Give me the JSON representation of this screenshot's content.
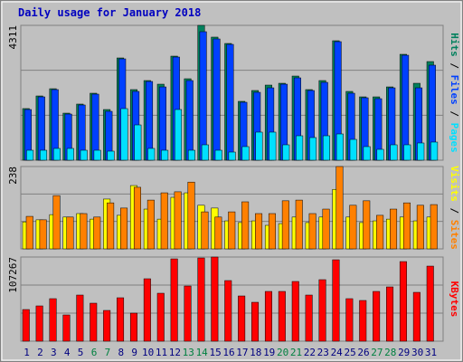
{
  "chart_data": [
    {
      "type": "bar",
      "title": "Daily usage for January 2018",
      "legend_separator": " / ",
      "ylim": [
        0,
        4311
      ],
      "yticks": [
        4311
      ],
      "series": [
        {
          "name": "Hits",
          "color": "#00805c",
          "values": [
            1650,
            2054,
            2285,
            1504,
            1794,
            2141,
            1620,
            3269,
            2257,
            2546,
            2430,
            3327,
            2604,
            4311,
            3935,
            3732,
            1881,
            2228,
            2401,
            2459,
            2690,
            2257,
            2546,
            3819,
            2199,
            2025,
            2025,
            2343,
            3385,
            2459,
            3153
          ]
        },
        {
          "name": "Files",
          "color": "#0040ff",
          "values": [
            1620,
            2025,
            2257,
            1475,
            1765,
            2112,
            1562,
            3240,
            2199,
            2517,
            2343,
            3298,
            2546,
            4108,
            3877,
            3703,
            1852,
            2170,
            2314,
            2430,
            2633,
            2228,
            2488,
            3790,
            2141,
            1996,
            1967,
            2314,
            3356,
            2314,
            3038
          ]
        },
        {
          "name": "Pages",
          "color": "#00e0ff",
          "values": [
            318,
            318,
            376,
            376,
            318,
            318,
            289,
            1649,
            1128,
            376,
            318,
            1620,
            318,
            492,
            318,
            260,
            434,
            897,
            897,
            492,
            781,
            723,
            781,
            839,
            665,
            434,
            347,
            492,
            492,
            550,
            579
          ]
        }
      ]
    },
    {
      "type": "bar",
      "legend_separator": " / ",
      "ylim": [
        0,
        238
      ],
      "yticks": [
        238
      ],
      "series": [
        {
          "name": "Visits",
          "color": "#ffff00",
          "values": [
            78,
            84,
            99,
            92,
            102,
            86,
            144,
            97,
            183,
            115,
            86,
            149,
            162,
            126,
            118,
            81,
            76,
            81,
            68,
            73,
            92,
            76,
            92,
            172,
            92,
            76,
            81,
            86,
            92,
            81,
            92
          ]
        },
        {
          "name": "Sites",
          "color": "#ff8000",
          "values": [
            94,
            84,
            154,
            92,
            102,
            92,
            133,
            118,
            178,
            141,
            162,
            165,
            193,
            107,
            92,
            107,
            136,
            102,
            102,
            139,
            141,
            102,
            115,
            238,
            126,
            139,
            97,
            115,
            133,
            126,
            128
          ]
        }
      ]
    },
    {
      "type": "bar",
      "legend_separator": " / ",
      "ylim": [
        0,
        107267
      ],
      "yticks": [
        107267
      ],
      "categories": [
        "1",
        "2",
        "3",
        "4",
        "5",
        "6",
        "7",
        "8",
        "9",
        "10",
        "11",
        "12",
        "13",
        "14",
        "15",
        "16",
        "17",
        "18",
        "19",
        "20",
        "21",
        "22",
        "23",
        "24",
        "25",
        "26",
        "27",
        "28",
        "29",
        "30",
        "31"
      ],
      "category_colors": [
        "#000080",
        "#000080",
        "#000080",
        "#000080",
        "#000080",
        "#008040",
        "#008040",
        "#000080",
        "#000080",
        "#000080",
        "#000080",
        "#000080",
        "#008040",
        "#008040",
        "#000080",
        "#000080",
        "#000080",
        "#000080",
        "#000080",
        "#008040",
        "#008040",
        "#000080",
        "#000080",
        "#000080",
        "#000080",
        "#000080",
        "#008040",
        "#008040",
        "#000080",
        "#000080",
        "#000080"
      ],
      "series": [
        {
          "name": "KBytes",
          "color": "#ff0000",
          "values": [
            40360,
            44972,
            54195,
            33444,
            58807,
            48430,
            39207,
            55348,
            35749,
            79570,
            61113,
            104921,
            70346,
            106074,
            107267,
            77264,
            57654,
            49583,
            63419,
            63419,
            76111,
            58807,
            78417,
            103768,
            54195,
            51889,
            63419,
            69184,
            101462,
            62266,
            95697
          ]
        }
      ]
    }
  ]
}
